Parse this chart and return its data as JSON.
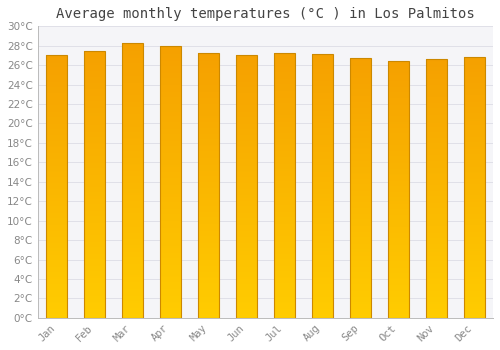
{
  "title": "Average monthly temperatures (°C ) in Los Palmitos",
  "months": [
    "Jan",
    "Feb",
    "Mar",
    "Apr",
    "May",
    "Jun",
    "Jul",
    "Aug",
    "Sep",
    "Oct",
    "Nov",
    "Dec"
  ],
  "values": [
    27.0,
    27.5,
    28.3,
    28.0,
    27.2,
    27.0,
    27.3,
    27.1,
    26.7,
    26.4,
    26.6,
    26.8
  ],
  "ylim": [
    0,
    30
  ],
  "yticks": [
    0,
    2,
    4,
    6,
    8,
    10,
    12,
    14,
    16,
    18,
    20,
    22,
    24,
    26,
    28,
    30
  ],
  "bar_color_bottom": "#FFCC00",
  "bar_color_top": "#F5A000",
  "bar_edge_color": "#CC8800",
  "background_color": "#FFFFFF",
  "plot_bg_color": "#F5F5F8",
  "grid_color": "#E0E0E8",
  "title_fontsize": 10,
  "tick_fontsize": 7.5,
  "title_color": "#444444",
  "tick_color": "#888888"
}
